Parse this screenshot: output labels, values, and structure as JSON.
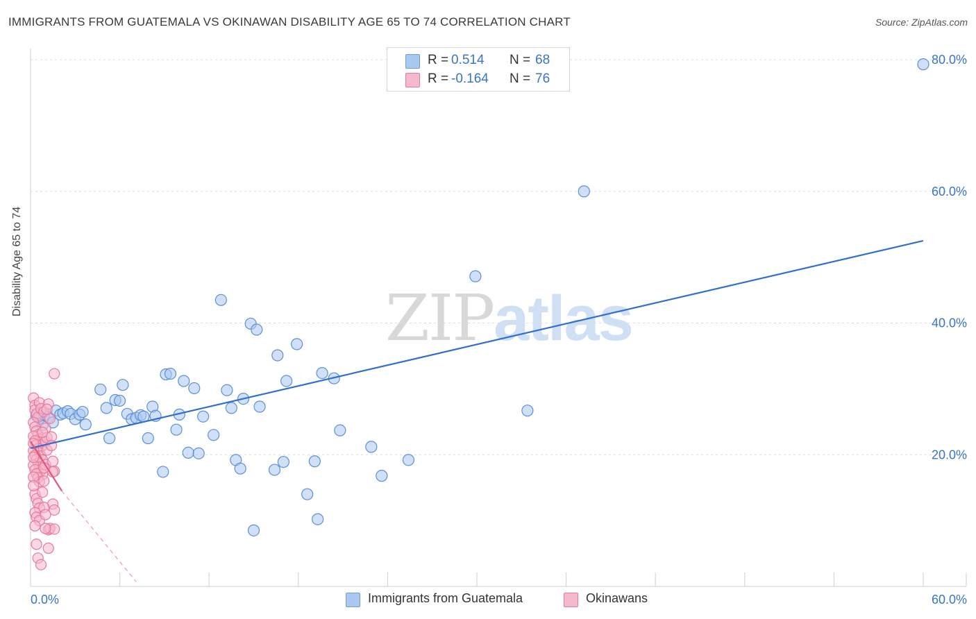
{
  "title": "IMMIGRANTS FROM GUATEMALA VS OKINAWAN DISABILITY AGE 65 TO 74 CORRELATION CHART",
  "source": "Source: ZipAtlas.com",
  "watermark": {
    "zip": "ZIP",
    "atlas": "atlas"
  },
  "legend_top": {
    "rows": [
      {
        "r_label": "R =",
        "r_value": "0.514",
        "n_label": "N =",
        "n_value": "68",
        "color": "#a9c8f0"
      },
      {
        "r_label": "R =",
        "r_value": "-0.164",
        "n_label": "N =",
        "n_value": "76",
        "color": "#f5b8cc"
      }
    ]
  },
  "legend_bottom": {
    "items": [
      {
        "label": "Immigrants from Guatemala",
        "color": "#a9c8f0"
      },
      {
        "label": "Okinawans",
        "color": "#f5b8cc"
      }
    ]
  },
  "chart_data": {
    "type": "scatter",
    "title": "IMMIGRANTS FROM GUATEMALA VS OKINAWAN DISABILITY AGE 65 TO 74 CORRELATION CHART",
    "xlabel": "",
    "ylabel": "Disability Age 65 to 74",
    "xlim": [
      0,
      60
    ],
    "ylim": [
      0,
      80
    ],
    "x_tick_labels": [
      {
        "value": 0,
        "label": "0.0%"
      },
      {
        "value": 60,
        "label": "60.0%"
      }
    ],
    "y_tick_labels": [
      {
        "value": 20,
        "label": "20.0%"
      },
      {
        "value": 40,
        "label": "40.0%"
      },
      {
        "value": 60,
        "label": "60.0%"
      },
      {
        "value": 80,
        "label": "80.0%"
      }
    ],
    "grid": true,
    "legend_position": "top-center",
    "colors": {
      "blue_fill": "#a9c8f0",
      "blue_stroke": "#5b8fd6",
      "blue_line": "#2f6fcf",
      "pink_fill": "#f5b8cc",
      "pink_stroke": "#e8789c",
      "pink_line": "#e4547f"
    },
    "series": [
      {
        "name": "Immigrants from Guatemala",
        "points": [
          [
            0.6,
            25.5
          ],
          [
            0.8,
            24.5
          ],
          [
            0.9,
            26.0
          ],
          [
            1.2,
            25.7
          ],
          [
            1.5,
            24.9
          ],
          [
            1.7,
            26.7
          ],
          [
            2.0,
            26.1
          ],
          [
            2.2,
            26.3
          ],
          [
            2.5,
            26.6
          ],
          [
            2.7,
            26.2
          ],
          [
            3.0,
            25.4
          ],
          [
            3.3,
            26.1
          ],
          [
            3.5,
            26.5
          ],
          [
            3.7,
            24.6
          ],
          [
            4.7,
            29.9
          ],
          [
            5.1,
            27.1
          ],
          [
            5.3,
            22.5
          ],
          [
            5.7,
            28.3
          ],
          [
            6.0,
            28.2
          ],
          [
            6.2,
            30.6
          ],
          [
            6.5,
            26.2
          ],
          [
            6.8,
            25.4
          ],
          [
            7.1,
            25.6
          ],
          [
            7.4,
            26.0
          ],
          [
            7.6,
            25.8
          ],
          [
            7.9,
            22.5
          ],
          [
            8.2,
            27.3
          ],
          [
            8.4,
            25.9
          ],
          [
            8.9,
            17.4
          ],
          [
            9.1,
            32.2
          ],
          [
            9.4,
            32.3
          ],
          [
            9.8,
            23.8
          ],
          [
            10.0,
            26.1
          ],
          [
            10.3,
            31.2
          ],
          [
            10.6,
            20.3
          ],
          [
            11.0,
            30.1
          ],
          [
            11.3,
            20.2
          ],
          [
            11.6,
            25.8
          ],
          [
            12.3,
            23.0
          ],
          [
            12.8,
            43.5
          ],
          [
            13.2,
            29.8
          ],
          [
            13.5,
            27.1
          ],
          [
            13.8,
            19.2
          ],
          [
            14.1,
            17.9
          ],
          [
            14.3,
            28.5
          ],
          [
            14.8,
            39.9
          ],
          [
            15.2,
            39.0
          ],
          [
            15.4,
            27.3
          ],
          [
            15.0,
            8.5
          ],
          [
            16.4,
            17.7
          ],
          [
            16.6,
            35.1
          ],
          [
            17.0,
            18.9
          ],
          [
            17.2,
            31.2
          ],
          [
            17.9,
            36.8
          ],
          [
            18.6,
            14.0
          ],
          [
            19.1,
            19.0
          ],
          [
            19.3,
            10.2
          ],
          [
            19.6,
            32.4
          ],
          [
            20.4,
            31.6
          ],
          [
            20.8,
            23.7
          ],
          [
            22.9,
            21.2
          ],
          [
            23.6,
            16.8
          ],
          [
            25.4,
            19.2
          ],
          [
            29.9,
            47.1
          ],
          [
            33.4,
            26.7
          ],
          [
            37.2,
            60.0
          ],
          [
            60.0,
            79.3
          ],
          [
            0.4,
            25.9
          ]
        ]
      },
      {
        "name": "Okinawans",
        "points": [
          [
            0.2,
            28.6
          ],
          [
            0.3,
            27.5
          ],
          [
            0.3,
            26.8
          ],
          [
            0.4,
            26.2
          ],
          [
            0.5,
            25.7
          ],
          [
            0.6,
            27.9
          ],
          [
            0.7,
            27.0
          ],
          [
            0.2,
            24.9
          ],
          [
            0.3,
            24.2
          ],
          [
            0.4,
            23.6
          ],
          [
            0.5,
            23.0
          ],
          [
            0.6,
            22.4
          ],
          [
            0.7,
            21.9
          ],
          [
            0.8,
            21.4
          ],
          [
            0.2,
            22.8
          ],
          [
            0.3,
            22.1
          ],
          [
            0.4,
            21.5
          ],
          [
            0.5,
            20.9
          ],
          [
            0.6,
            20.3
          ],
          [
            0.7,
            19.8
          ],
          [
            0.8,
            19.2
          ],
          [
            0.2,
            20.6
          ],
          [
            0.3,
            19.9
          ],
          [
            0.4,
            19.3
          ],
          [
            0.5,
            18.7
          ],
          [
            0.6,
            18.1
          ],
          [
            0.7,
            17.6
          ],
          [
            0.8,
            17.0
          ],
          [
            0.2,
            18.4
          ],
          [
            0.3,
            17.7
          ],
          [
            0.4,
            17.1
          ],
          [
            0.5,
            16.5
          ],
          [
            0.6,
            15.9
          ],
          [
            0.9,
            26.5
          ],
          [
            1.0,
            24.0
          ],
          [
            1.0,
            22.0
          ],
          [
            1.1,
            20.7
          ],
          [
            1.0,
            18.5
          ],
          [
            0.9,
            16.0
          ],
          [
            1.2,
            27.7
          ],
          [
            1.3,
            25.5
          ],
          [
            1.1,
            22.6
          ],
          [
            1.4,
            22.7
          ],
          [
            1.5,
            19.0
          ],
          [
            1.6,
            17.5
          ],
          [
            1.5,
            12.5
          ],
          [
            1.6,
            11.6
          ],
          [
            0.3,
            14.0
          ],
          [
            0.4,
            13.3
          ],
          [
            0.5,
            12.6
          ],
          [
            0.6,
            11.9
          ],
          [
            0.3,
            11.2
          ],
          [
            0.4,
            10.5
          ],
          [
            0.6,
            10.0
          ],
          [
            0.8,
            14.3
          ],
          [
            0.9,
            12.0
          ],
          [
            1.0,
            10.9
          ],
          [
            0.3,
            9.2
          ],
          [
            0.4,
            6.4
          ],
          [
            0.5,
            4.3
          ],
          [
            0.7,
            3.3
          ],
          [
            1.2,
            8.6
          ],
          [
            1.3,
            8.8
          ],
          [
            1.2,
            5.8
          ],
          [
            1.6,
            8.7
          ],
          [
            1.5,
            17.4
          ],
          [
            1.4,
            21.4
          ],
          [
            1.0,
            8.8
          ],
          [
            1.6,
            32.3
          ],
          [
            0.2,
            21.7
          ],
          [
            0.2,
            19.6
          ],
          [
            0.2,
            16.6
          ],
          [
            0.2,
            15.3
          ],
          [
            0.8,
            23.4
          ],
          [
            1.1,
            26.9
          ],
          [
            0.9,
            18.0
          ]
        ]
      }
    ],
    "trend_lines": [
      {
        "series": "Immigrants from Guatemala",
        "x": [
          0,
          60
        ],
        "y": [
          21.0,
          52.5
        ],
        "style": "solid"
      },
      {
        "series": "Okinawans",
        "x": [
          0,
          2.1
        ],
        "y": [
          22.0,
          14.5
        ],
        "style": "solid"
      },
      {
        "series": "Okinawans",
        "x": [
          2.1,
          7.1
        ],
        "y": [
          14.5,
          0.7
        ],
        "style": "dashed"
      }
    ]
  }
}
